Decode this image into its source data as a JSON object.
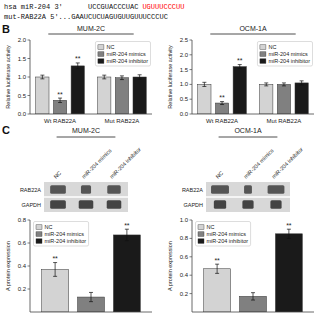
{
  "annotations": [
    {
      "text": "hsa miR-204 3'      UCCGUACCCUAC"
    },
    {
      "text": "UGUUUCCCUU",
      "color": "red"
    },
    {
      "text": "mut-RAB22A 5'...GAAUCUCUAGUGUUGUUUCCCUC"
    },
    {
      "text": "B"
    },
    {
      "text": "C"
    }
  ],
  "chart_data": [
    {
      "type": "bar",
      "title": "MUM-2C",
      "y_label": "Relative luciferase activity",
      "categories": [
        "Wt RAB22A",
        "Mut RAB22A"
      ],
      "series": [
        {
          "name": "NC",
          "color": "#d3d3d3",
          "values": [
            1.0,
            1.0
          ],
          "errors": [
            0.05,
            0.05
          ]
        },
        {
          "name": "miR-204 mimics",
          "color": "#808080",
          "values": [
            0.37,
            0.98
          ],
          "errors": [
            0.06,
            0.05
          ]
        },
        {
          "name": "miR-204 inhibitor",
          "color": "#1a1a1a",
          "values": [
            1.3,
            1.0
          ],
          "errors": [
            0.08,
            0.06
          ]
        }
      ],
      "ylim": [
        0,
        2.0
      ],
      "yticks": [
        {
          "value": 0.0,
          "label": "0.0"
        },
        0.5,
        {
          "value": 1.0,
          "label": "1.0"
        },
        1.5,
        {
          "value": 2.0,
          "label": "2.0"
        }
      ],
      "legend": "upper right",
      "grid": false,
      "annotations": [
        {
          "text": "**",
          "series": "miR-204 mimics",
          "category": "Wt RAB22A"
        },
        {
          "text": "**",
          "series": "miR-204 inhibitor",
          "category": "Wt RAB22A"
        }
      ]
    },
    {
      "type": "bar",
      "title": "OCM-1A",
      "y_label": "Relative luciferase activity",
      "categories": [
        "Wt RAB22A",
        "Mut RAB22A"
      ],
      "series": [
        {
          "name": "NC",
          "color": "#d3d3d3",
          "values": [
            1.0,
            1.0
          ],
          "errors": [
            0.07,
            0.05
          ]
        },
        {
          "name": "miR-204 mimics",
          "color": "#808080",
          "values": [
            0.37,
            1.0
          ],
          "errors": [
            0.05,
            0.05
          ]
        },
        {
          "name": "miR-204 inhibitor",
          "color": "#1a1a1a",
          "values": [
            1.6,
            1.05
          ],
          "errors": [
            0.07,
            0.07
          ]
        }
      ],
      "ylim": [
        0,
        2.5
      ],
      "yticks": [
        {
          "value": 0.0,
          "label": "0.0"
        },
        0.5,
        {
          "value": 1.0,
          "label": "1.0"
        },
        1.5,
        {
          "value": 2.0,
          "label": "2.0"
        },
        2.5
      ],
      "legend": "upper right",
      "grid": false,
      "annotations": [
        {
          "text": "**",
          "series": "miR-204 mimics",
          "category": "Wt RAB22A"
        },
        {
          "text": "**",
          "series": "miR-204 inhibitor",
          "category": "Wt RAB22A"
        }
      ]
    },
    {
      "type": "blot",
      "title": "MUM-2C",
      "rows": [
        "RAB22A",
        "GAPDH"
      ],
      "columns": [
        "NC",
        "miR-204 mimics",
        "miR-204 inhibitor"
      ],
      "bands": [
        [
          0.7,
          0.45,
          0.6
        ],
        [
          0.7,
          0.65,
          0.65
        ]
      ]
    },
    {
      "type": "bar",
      "y_label": "A protein expression",
      "categories": [
        null
      ],
      "series": [
        {
          "name": "NC",
          "color": "#d3d3d3",
          "values": [
            0.37
          ],
          "errors": [
            0.06
          ]
        },
        {
          "name": "miR-204 mimics",
          "color": "#808080",
          "values": [
            0.13
          ],
          "errors": [
            0.04
          ]
        },
        {
          "name": "miR-204 inhibitor",
          "color": "#1a1a1a",
          "values": [
            0.67
          ],
          "errors": [
            0.05
          ]
        }
      ],
      "ylim": [
        0,
        0.8
      ],
      "yticks": [
        0.2,
        0.4,
        0.6,
        0.8
      ],
      "legend": "upper left",
      "grid": false,
      "tick_labels": "y",
      "annotations": [
        {
          "text": "**",
          "series": "NC",
          "category": null
        },
        {
          "text": "**",
          "series": "miR-204 inhibitor",
          "category": null
        }
      ]
    },
    {
      "type": "blot",
      "title": "OCM-1A",
      "rows": [
        "RAB22A",
        "GAPDH"
      ],
      "columns": [
        "NC",
        "miR-204 mimics",
        "miR-204 inhibitor"
      ],
      "bands": [
        [
          0.8,
          0.35,
          0.75
        ],
        [
          0.55,
          0.5,
          0.5
        ]
      ]
    },
    {
      "type": "bar",
      "y_label": "A protein expression",
      "categories": [
        null
      ],
      "series": [
        {
          "name": "NC",
          "color": "#d3d3d3",
          "values": [
            0.47
          ],
          "errors": [
            0.05
          ]
        },
        {
          "name": "miR-204 mimics",
          "color": "#808080",
          "values": [
            0.17
          ],
          "errors": [
            0.04
          ]
        },
        {
          "name": "miR-204 inhibitor",
          "color": "#1a1a1a",
          "values": [
            0.85
          ],
          "errors": [
            0.05
          ]
        }
      ],
      "ylim": [
        0,
        1.0
      ],
      "yticks": [
        0.2,
        0.4,
        0.6,
        0.8,
        {
          "value": 1.0,
          "label": "1.0"
        }
      ],
      "legend": "upper left",
      "grid": false,
      "tick_labels": "y",
      "annotations": [
        {
          "text": "**",
          "series": "NC",
          "category": null
        },
        {
          "text": "**",
          "series": "miR-204 inhibitor",
          "category": null
        }
      ]
    }
  ]
}
